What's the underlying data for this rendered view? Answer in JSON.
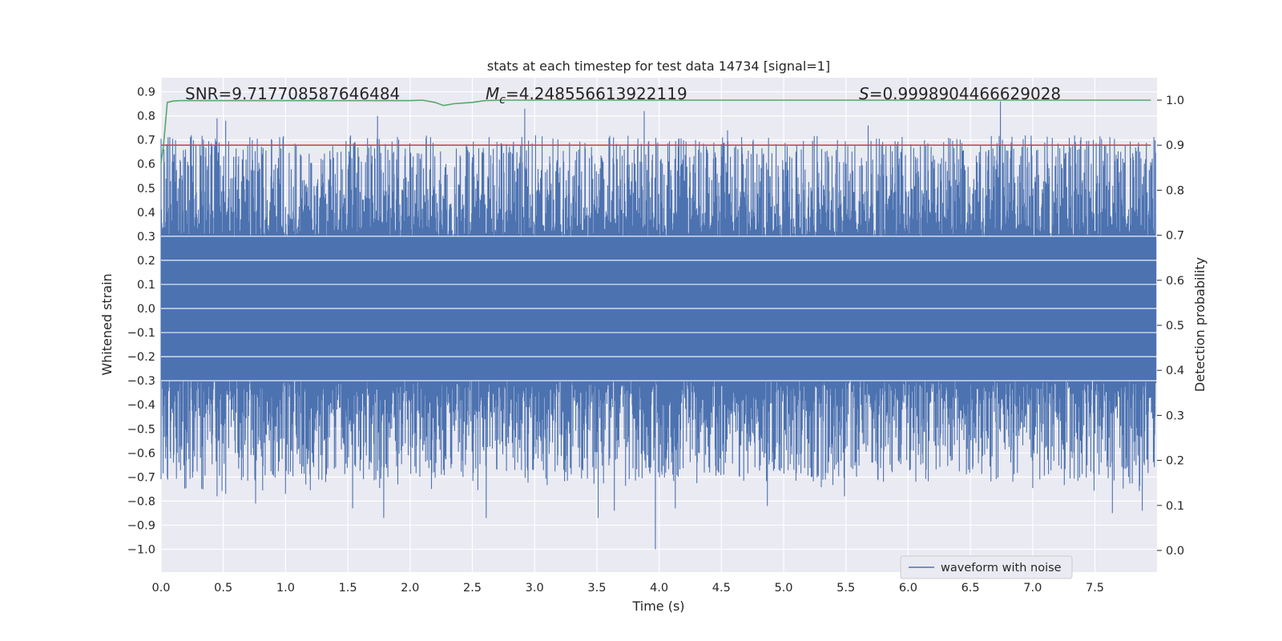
{
  "chart_data": {
    "type": "line",
    "title": "stats at each timestep for test data 14734 [signal=1]",
    "xlabel": "Time (s)",
    "ylabel": "Whitened strain",
    "y2label": "Detection probability",
    "xlim": [
      0.0,
      8.0
    ],
    "ylim": [
      -1.09,
      0.96
    ],
    "y2lim": [
      -0.05,
      1.05
    ],
    "xticks": [
      "0.0",
      "0.5",
      "1.0",
      "1.5",
      "2.0",
      "2.5",
      "3.0",
      "3.5",
      "4.0",
      "4.5",
      "5.0",
      "5.5",
      "6.0",
      "6.5",
      "7.0",
      "7.5"
    ],
    "yticks": [
      "0.9",
      "0.8",
      "0.7",
      "0.6",
      "0.5",
      "0.4",
      "0.3",
      "0.2",
      "0.1",
      "0.0",
      "−0.1",
      "−0.2",
      "−0.3",
      "−0.4",
      "−0.5",
      "−0.6",
      "−0.7",
      "−0.8",
      "−0.9",
      "−1.0"
    ],
    "y2ticks": [
      "1.0",
      "0.9",
      "0.8",
      "0.7",
      "0.6",
      "0.5",
      "0.4",
      "0.3",
      "0.2",
      "0.1",
      "0.0"
    ],
    "grid": true,
    "legend_position": "lower-right",
    "annotations": {
      "snr": "SNR=9.717708587646484",
      "mc_symbol": "M",
      "mc_sub": "c",
      "mc_value": "=4.248556613922119",
      "s_symbol": "S",
      "s_value": "=0.9998904466629028"
    },
    "series": [
      {
        "name": "waveform with noise",
        "axis": "left",
        "color": "#4c72b0",
        "kind": "dense-noise",
        "duration_s": 7.99,
        "core_amplitude": 0.3,
        "max": 0.86,
        "min": -1.0,
        "peaks_high": [
          [
            0.45,
            0.79
          ],
          [
            0.52,
            0.78
          ],
          [
            1.74,
            0.8
          ],
          [
            2.92,
            0.83
          ],
          [
            3.88,
            0.82
          ],
          [
            4.55,
            0.74
          ],
          [
            5.68,
            0.76
          ],
          [
            6.74,
            0.86
          ],
          [
            0.28,
            0.68
          ],
          [
            2.58,
            0.65
          ],
          [
            3.72,
            0.66
          ]
        ],
        "peaks_low": [
          [
            0.45,
            -0.78
          ],
          [
            0.52,
            -0.77
          ],
          [
            0.76,
            -0.81
          ],
          [
            1.0,
            -0.77
          ],
          [
            1.54,
            -0.83
          ],
          [
            1.79,
            -0.87
          ],
          [
            2.61,
            -0.87
          ],
          [
            3.51,
            -0.87
          ],
          [
            3.64,
            -0.84
          ],
          [
            3.97,
            -1.0
          ],
          [
            4.13,
            -0.83
          ],
          [
            4.87,
            -0.82
          ],
          [
            5.49,
            -0.78
          ],
          [
            7.64,
            -0.85
          ],
          [
            7.88,
            -0.84
          ]
        ]
      },
      {
        "name": "",
        "axis": "right",
        "color": "#55a868",
        "x": [
          0.0,
          0.02,
          0.05,
          0.1,
          0.15,
          2.0,
          2.1,
          2.2,
          2.27,
          2.35,
          2.5,
          2.6,
          2.75,
          7.95
        ],
        "y": [
          0.86,
          0.9,
          0.995,
          0.998,
          0.999,
          0.999,
          1.0,
          0.995,
          0.988,
          0.992,
          0.995,
          0.999,
          1.0,
          1.0
        ]
      },
      {
        "name": "",
        "axis": "right",
        "color": "#c44e52",
        "x": [
          0.0,
          7.95
        ],
        "y": [
          0.9,
          0.9
        ]
      }
    ]
  }
}
